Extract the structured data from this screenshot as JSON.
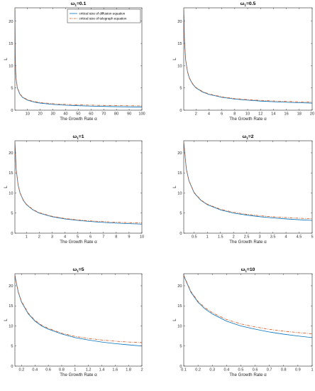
{
  "colors": {
    "diffusion": "#0072BD",
    "telegraph": "#D95319"
  },
  "legend": {
    "placement": "top-right",
    "entries": [
      {
        "label": "critical size of diffusion equation",
        "style": "solid",
        "color": "#0072BD"
      },
      {
        "label": "critical size of telegraph equation",
        "style": "dash-dot",
        "color": "#D95319"
      }
    ]
  },
  "chart_data": [
    {
      "type": "line",
      "title_main": "ω",
      "title_sub": "1",
      "title_tail": "=0.1",
      "xlabel": "The Growth Rate  α",
      "ylabel": "L",
      "xlim": [
        0.1,
        100
      ],
      "ylim": [
        0,
        23
      ],
      "xticks": [
        10,
        20,
        30,
        40,
        50,
        60,
        70,
        80,
        90,
        100
      ],
      "yticks": [
        0,
        5,
        10,
        15,
        20
      ],
      "has_legend": true,
      "series": [
        {
          "name": "critical size of diffusion equation",
          "x": [
            0.1,
            0.3,
            0.6,
            1,
            2,
            4,
            6,
            10,
            15,
            20,
            30,
            40,
            50,
            60,
            70,
            80,
            90,
            100
          ],
          "y": [
            22.5,
            13.0,
            9.2,
            7.1,
            5.0,
            3.6,
            2.9,
            2.25,
            1.84,
            1.59,
            1.3,
            1.12,
            1.01,
            0.92,
            0.85,
            0.79,
            0.75,
            0.71
          ]
        },
        {
          "name": "critical size of telegraph equation",
          "x": [
            0.1,
            0.3,
            0.6,
            1,
            2,
            4,
            6,
            10,
            15,
            20,
            30,
            40,
            50,
            60,
            70,
            80,
            90,
            100
          ],
          "y": [
            22.6,
            13.1,
            9.3,
            7.2,
            5.1,
            3.7,
            3.0,
            2.35,
            1.95,
            1.72,
            1.45,
            1.3,
            1.2,
            1.13,
            1.07,
            1.03,
            1.0,
            0.97
          ]
        }
      ]
    },
    {
      "type": "line",
      "title_main": "ω",
      "title_sub": "1",
      "title_tail": "=0.5",
      "xlabel": "The Growth Rate  α",
      "ylabel": "L",
      "xlim": [
        0.1,
        20
      ],
      "ylim": [
        0,
        23
      ],
      "xticks": [
        2,
        4,
        6,
        8,
        10,
        12,
        14,
        16,
        18,
        20
      ],
      "yticks": [
        0,
        5,
        10,
        15,
        20
      ],
      "has_legend": false,
      "series": [
        {
          "name": "critical size of diffusion equation",
          "x": [
            0.1,
            0.2,
            0.4,
            0.7,
            1,
            1.5,
            2,
            3,
            4,
            6,
            8,
            10,
            12,
            14,
            16,
            18,
            20
          ],
          "y": [
            22.5,
            15.9,
            11.2,
            8.5,
            7.1,
            5.8,
            5.0,
            4.1,
            3.55,
            2.9,
            2.5,
            2.25,
            2.05,
            1.9,
            1.78,
            1.68,
            1.59
          ]
        },
        {
          "name": "critical size of telegraph equation",
          "x": [
            0.1,
            0.2,
            0.4,
            0.7,
            1,
            1.5,
            2,
            3,
            4,
            6,
            8,
            10,
            12,
            14,
            16,
            18,
            20
          ],
          "y": [
            22.6,
            16.0,
            11.3,
            8.6,
            7.2,
            5.9,
            5.1,
            4.2,
            3.65,
            3.0,
            2.62,
            2.37,
            2.2,
            2.07,
            1.97,
            1.88,
            1.82
          ]
        }
      ]
    },
    {
      "type": "line",
      "title_main": "ω",
      "title_sub": "1",
      "title_tail": "=1",
      "xlabel": "The Growth Rate  α",
      "ylabel": "L",
      "xlim": [
        0.1,
        10
      ],
      "ylim": [
        0,
        23
      ],
      "xticks": [
        1,
        2,
        3,
        4,
        5,
        6,
        7,
        8,
        9,
        10
      ],
      "yticks": [
        0,
        5,
        10,
        15,
        20
      ],
      "has_legend": false,
      "series": [
        {
          "name": "critical size of diffusion equation",
          "x": [
            0.1,
            0.2,
            0.35,
            0.5,
            0.75,
            1,
            1.5,
            2,
            3,
            4,
            5,
            6,
            7,
            8,
            9,
            10
          ],
          "y": [
            22.5,
            15.9,
            12.0,
            10.0,
            8.2,
            7.1,
            5.8,
            5.0,
            4.1,
            3.55,
            3.18,
            2.9,
            2.68,
            2.5,
            2.37,
            2.25
          ]
        },
        {
          "name": "critical size of telegraph equation",
          "x": [
            0.1,
            0.2,
            0.35,
            0.5,
            0.75,
            1,
            1.5,
            2,
            3,
            4,
            5,
            6,
            7,
            8,
            9,
            10
          ],
          "y": [
            22.6,
            16.0,
            12.1,
            10.1,
            8.3,
            7.2,
            5.9,
            5.1,
            4.2,
            3.65,
            3.3,
            3.05,
            2.87,
            2.73,
            2.62,
            2.53
          ]
        }
      ]
    },
    {
      "type": "line",
      "title_main": "ω",
      "title_sub": "1",
      "title_tail": "=2",
      "xlabel": "The Growth Rate  α",
      "ylabel": "L",
      "xlim": [
        0.1,
        5
      ],
      "ylim": [
        0,
        23
      ],
      "xticks": [
        0.5,
        1,
        1.5,
        2,
        2.5,
        3,
        3.5,
        4,
        4.5,
        5
      ],
      "yticks": [
        0,
        5,
        10,
        15,
        20
      ],
      "has_legend": false,
      "series": [
        {
          "name": "critical size of diffusion equation",
          "x": [
            0.1,
            0.2,
            0.3,
            0.5,
            0.75,
            1,
            1.5,
            2,
            2.5,
            3,
            3.5,
            4,
            4.5,
            5
          ],
          "y": [
            22.5,
            15.9,
            13.0,
            10.0,
            8.2,
            7.1,
            5.8,
            5.0,
            4.5,
            4.1,
            3.8,
            3.55,
            3.35,
            3.18
          ]
        },
        {
          "name": "critical size of telegraph equation",
          "x": [
            0.1,
            0.2,
            0.3,
            0.5,
            0.75,
            1,
            1.5,
            2,
            2.5,
            3,
            3.5,
            4,
            4.5,
            5
          ],
          "y": [
            22.6,
            16.0,
            13.1,
            10.1,
            8.3,
            7.2,
            5.95,
            5.2,
            4.7,
            4.35,
            4.08,
            3.88,
            3.72,
            3.6
          ]
        }
      ]
    },
    {
      "type": "line",
      "title_main": "ω",
      "title_sub": "1",
      "title_tail": "=5",
      "xlabel": "The Growth Rate  α",
      "ylabel": "L",
      "xlim": [
        0.1,
        2
      ],
      "ylim": [
        0,
        23
      ],
      "xticks": [
        0.2,
        0.4,
        0.6,
        0.8,
        1,
        1.2,
        1.4,
        1.6,
        1.8,
        2
      ],
      "yticks": [
        0,
        5,
        10,
        15,
        20
      ],
      "has_legend": false,
      "series": [
        {
          "name": "critical size of diffusion equation",
          "x": [
            0.1,
            0.15,
            0.2,
            0.3,
            0.4,
            0.5,
            0.6,
            0.8,
            1,
            1.2,
            1.4,
            1.6,
            1.8,
            2
          ],
          "y": [
            22.5,
            18.4,
            15.9,
            13.0,
            11.2,
            10.0,
            9.2,
            8.0,
            7.1,
            6.5,
            6.0,
            5.6,
            5.3,
            5.0
          ]
        },
        {
          "name": "critical size of telegraph equation",
          "x": [
            0.1,
            0.15,
            0.2,
            0.3,
            0.4,
            0.5,
            0.6,
            0.8,
            1,
            1.2,
            1.4,
            1.6,
            1.8,
            2
          ],
          "y": [
            22.6,
            18.5,
            16.1,
            13.2,
            11.4,
            10.2,
            9.4,
            8.2,
            7.4,
            6.9,
            6.5,
            6.2,
            6.0,
            5.85
          ]
        }
      ]
    },
    {
      "type": "line",
      "title_main": "ω",
      "title_sub": "1",
      "title_tail": "=10",
      "xlabel": "The Growth Rate  α",
      "ylabel": "L",
      "xlim": [
        0.1,
        1
      ],
      "ylim": [
        0,
        23
      ],
      "xticks": [
        0.1,
        0.2,
        0.3,
        0.4,
        0.5,
        0.6,
        0.7,
        0.8,
        0.9,
        1
      ],
      "yticks": [
        0,
        5,
        10,
        15,
        20
      ],
      "has_legend": false,
      "series": [
        {
          "name": "critical size of diffusion equation",
          "x": [
            0.1,
            0.15,
            0.2,
            0.25,
            0.3,
            0.4,
            0.5,
            0.6,
            0.7,
            0.8,
            0.9,
            1
          ],
          "y": [
            22.5,
            18.4,
            15.9,
            14.2,
            13.0,
            11.2,
            10.0,
            9.2,
            8.5,
            7.95,
            7.5,
            7.1
          ]
        },
        {
          "name": "critical size of telegraph equation",
          "x": [
            0.1,
            0.15,
            0.2,
            0.25,
            0.3,
            0.4,
            0.5,
            0.6,
            0.7,
            0.8,
            0.9,
            1
          ],
          "y": [
            22.6,
            18.6,
            16.1,
            14.5,
            13.3,
            11.6,
            10.5,
            9.75,
            9.15,
            8.7,
            8.35,
            8.05
          ]
        }
      ]
    }
  ]
}
